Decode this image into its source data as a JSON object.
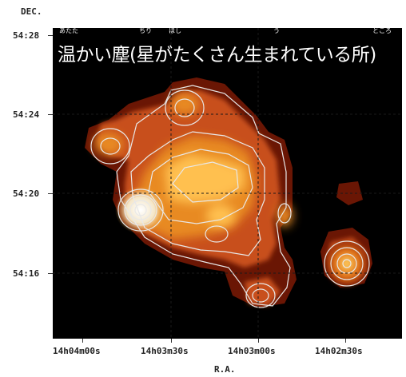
{
  "axes": {
    "y_title": "DEC.",
    "x_title": "R.A.",
    "y_ticks": [
      "54:28",
      "54:24",
      "54:20",
      "54:16"
    ],
    "x_ticks": [
      "14h04m00s",
      "14h03m30s",
      "14h03m00s",
      "14h02m30s"
    ]
  },
  "title": {
    "text": "温かい塵(星がたくさん生まれている所)",
    "ruby": [
      "あたた",
      "ちり",
      "ほし",
      "う",
      "ところ"
    ]
  },
  "colors": {
    "background": "#000000",
    "contour": "#e8e8e8",
    "dark_red": "#7a1a04",
    "orange": "#e0701a",
    "bright": "#ffd070"
  }
}
